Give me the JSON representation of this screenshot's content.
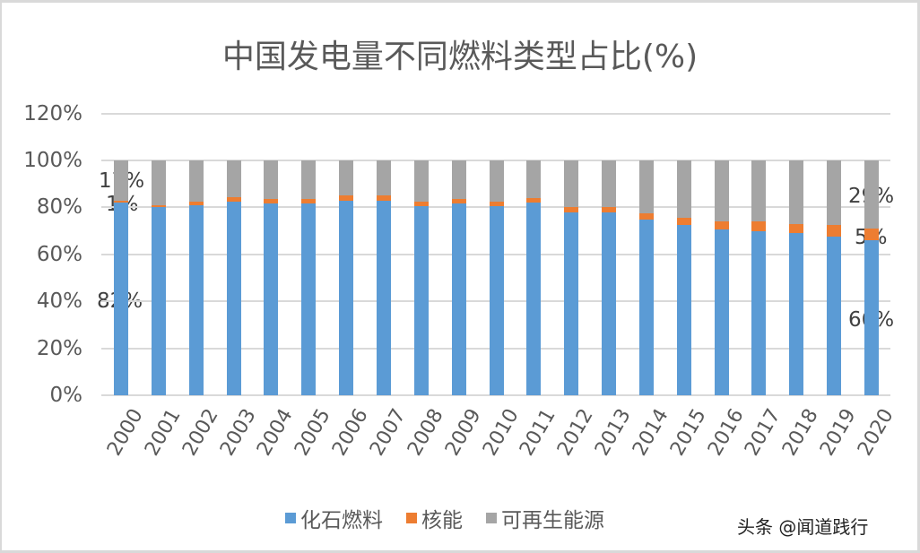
{
  "title": "中国发电量不同燃料类型占比(%)",
  "y_ticks": [
    "120%",
    "100%",
    "80%",
    "60%",
    "40%",
    "20%",
    "0%"
  ],
  "legend": [
    {
      "label": "化石燃料",
      "color": "#5b9bd5"
    },
    {
      "label": "核能",
      "color": "#ed7d31"
    },
    {
      "label": "可再生能源",
      "color": "#a5a5a5"
    }
  ],
  "data_labels": {
    "first": {
      "fossil": "82%",
      "nuclear": "1%",
      "renewable": "17%"
    },
    "last": {
      "fossil": "66%",
      "nuclear": "5%",
      "renewable": "29%"
    }
  },
  "watermark": "头条 @闻道践行",
  "chart_data": {
    "type": "bar",
    "stacked": "percent",
    "title": "中国发电量不同燃料类型占比(%)",
    "xlabel": "",
    "ylabel": "",
    "ylim": [
      0,
      120
    ],
    "y_tick_labels": [
      "0%",
      "20%",
      "40%",
      "60%",
      "80%",
      "100%",
      "120%"
    ],
    "grid": true,
    "legend_position": "bottom",
    "categories": [
      "2000",
      "2001",
      "2002",
      "2003",
      "2004",
      "2005",
      "2006",
      "2007",
      "2008",
      "2009",
      "2010",
      "2011",
      "2012",
      "2013",
      "2014",
      "2015",
      "2016",
      "2017",
      "2018",
      "2019",
      "2020"
    ],
    "series": [
      {
        "name": "化石燃料",
        "color": "#5b9bd5",
        "values": [
          82,
          80,
          81,
          82.5,
          81.5,
          81.5,
          83,
          83,
          80.5,
          81.5,
          80.5,
          82,
          78,
          78,
          75,
          72.5,
          70.5,
          70,
          69,
          67.5,
          66
        ]
      },
      {
        "name": "核能",
        "color": "#ed7d31",
        "values": [
          1,
          1,
          1.5,
          2,
          2,
          2,
          2,
          2,
          2,
          2,
          2,
          2,
          2,
          2,
          2.5,
          3,
          3.5,
          4,
          4,
          5,
          5
        ]
      },
      {
        "name": "可再生能源",
        "color": "#a5a5a5",
        "values": [
          17,
          19,
          17.5,
          15.5,
          16.5,
          16.5,
          15,
          15,
          17.5,
          16.5,
          17.5,
          16,
          20,
          20,
          22.5,
          24.5,
          26,
          26,
          27,
          27.5,
          29
        ]
      }
    ],
    "annotations": [
      {
        "category": "2000",
        "series": "化石燃料",
        "text": "82%"
      },
      {
        "category": "2000",
        "series": "核能",
        "text": "1%"
      },
      {
        "category": "2000",
        "series": "可再生能源",
        "text": "17%"
      },
      {
        "category": "2020",
        "series": "化石燃料",
        "text": "66%"
      },
      {
        "category": "2020",
        "series": "核能",
        "text": "5%"
      },
      {
        "category": "2020",
        "series": "可再生能源",
        "text": "29%"
      }
    ]
  }
}
